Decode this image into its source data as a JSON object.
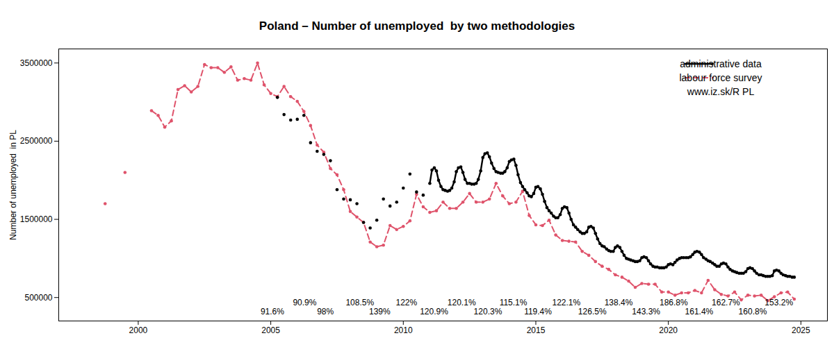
{
  "chart_data": {
    "type": "line",
    "title": "Poland – Number of unemployed  by two methodologies",
    "y_label": "Number of unemployed  in PL",
    "xlim": [
      1997,
      2026
    ],
    "xticks": [
      2000,
      2005,
      2010,
      2015,
      2020,
      2025
    ],
    "ylim": [
      200000,
      3680000
    ],
    "yticks": [
      500000,
      1500000,
      2500000,
      3500000
    ],
    "grid": false,
    "legend": "top-right",
    "caption": "www.iz.sk/R PL",
    "series": [
      {
        "name": "administrative data",
        "color": "#000000",
        "line_style": "solid",
        "marker": "circle",
        "x": [
          2005.25,
          2005.37,
          2005.5,
          2005.62,
          2005.75,
          2005.87,
          2006,
          2006.12,
          2006.25,
          2006.37,
          2006.5,
          2006.62,
          2006.75,
          2006.87,
          2007,
          2007.12,
          2007.25,
          2007.37,
          2007.5,
          2007.62,
          2007.75,
          2007.87,
          2008,
          2008.12,
          2008.25,
          2008.37,
          2008.5,
          2008.62,
          2008.75,
          2008.87,
          2009,
          2009.12,
          2009.25,
          2009.37,
          2009.5,
          2009.62,
          2009.75,
          2009.87,
          2010,
          2010.12,
          2010.25,
          2010.37,
          2010.5,
          2010.62,
          2010.75,
          2010.87,
          2011,
          2011.08,
          2011.17,
          2011.25,
          2011.33,
          2011.42,
          2011.5,
          2011.58,
          2011.67,
          2011.75,
          2011.83,
          2011.92,
          2012,
          2012.08,
          2012.17,
          2012.25,
          2012.33,
          2012.42,
          2012.5,
          2012.58,
          2012.67,
          2012.75,
          2012.83,
          2012.92,
          2013,
          2013.08,
          2013.17,
          2013.25,
          2013.33,
          2013.42,
          2013.5,
          2013.58,
          2013.67,
          2013.75,
          2013.83,
          2013.92,
          2014,
          2014.08,
          2014.17,
          2014.25,
          2014.33,
          2014.42,
          2014.5,
          2014.58,
          2014.67,
          2014.75,
          2014.83,
          2014.92,
          2015,
          2015.08,
          2015.17,
          2015.25,
          2015.33,
          2015.42,
          2015.5,
          2015.58,
          2015.67,
          2015.75,
          2015.83,
          2015.92,
          2016,
          2016.08,
          2016.17,
          2016.25,
          2016.33,
          2016.42,
          2016.5,
          2016.58,
          2016.67,
          2016.75,
          2016.83,
          2016.92,
          2017,
          2017.08,
          2017.17,
          2017.25,
          2017.33,
          2017.42,
          2017.5,
          2017.58,
          2017.67,
          2017.75,
          2017.83,
          2017.92,
          2018,
          2018.08,
          2018.17,
          2018.25,
          2018.33,
          2018.42,
          2018.5,
          2018.58,
          2018.67,
          2018.75,
          2018.83,
          2018.92,
          2019,
          2019.08,
          2019.17,
          2019.25,
          2019.33,
          2019.42,
          2019.5,
          2019.58,
          2019.67,
          2019.75,
          2019.83,
          2019.92,
          2020,
          2020.08,
          2020.17,
          2020.25,
          2020.33,
          2020.42,
          2020.5,
          2020.58,
          2020.67,
          2020.75,
          2020.83,
          2020.92,
          2021,
          2021.08,
          2021.17,
          2021.25,
          2021.33,
          2021.42,
          2021.5,
          2021.58,
          2021.67,
          2021.75,
          2021.83,
          2021.92,
          2022,
          2022.08,
          2022.17,
          2022.25,
          2022.33,
          2022.42,
          2022.5,
          2022.58,
          2022.67,
          2022.75,
          2022.83,
          2022.92,
          2023,
          2023.08,
          2023.17,
          2023.25,
          2023.33,
          2023.42,
          2023.5,
          2023.58,
          2023.67,
          2023.75,
          2023.83,
          2023.92,
          2024,
          2024.08,
          2024.17,
          2024.25,
          2024.33,
          2024.42,
          2024.5,
          2024.58,
          2024.67,
          2024.75
        ],
        "values": [
          3060000,
          null,
          2840000,
          null,
          2770000,
          null,
          2780000,
          null,
          2830000,
          null,
          2480000,
          null,
          2370000,
          null,
          2330000,
          null,
          2250000,
          null,
          1880000,
          null,
          1760000,
          null,
          1750000,
          null,
          1700000,
          null,
          1460000,
          null,
          1390000,
          null,
          1490000,
          null,
          1760000,
          null,
          1670000,
          null,
          1720000,
          null,
          1900000,
          null,
          2080000,
          null,
          1850000,
          null,
          1810000,
          null,
          1960000,
          2130000,
          2160000,
          2120000,
          2000000,
          1920000,
          1880000,
          1870000,
          1860000,
          1870000,
          1900000,
          1980000,
          2110000,
          2160000,
          2170000,
          2100000,
          2010000,
          1960000,
          1960000,
          1950000,
          1950000,
          1960000,
          2010000,
          2120000,
          2290000,
          2340000,
          2350000,
          2300000,
          2220000,
          2150000,
          2110000,
          2100000,
          2090000,
          2090000,
          2110000,
          2160000,
          2240000,
          2260000,
          2270000,
          2190000,
          2070000,
          1970000,
          1920000,
          1880000,
          1840000,
          1800000,
          1790000,
          1830000,
          1910000,
          1920000,
          1890000,
          1820000,
          1730000,
          1650000,
          1610000,
          1580000,
          1540000,
          1520000,
          1520000,
          1560000,
          1640000,
          1660000,
          1650000,
          1580000,
          1500000,
          1430000,
          1400000,
          1370000,
          1340000,
          1320000,
          1320000,
          1340000,
          1400000,
          1410000,
          1390000,
          1320000,
          1250000,
          1190000,
          1160000,
          1150000,
          1120000,
          1100000,
          1090000,
          1090000,
          1140000,
          1160000,
          1140000,
          1090000,
          1040000,
          1000000,
          990000,
          980000,
          970000,
          960000,
          960000,
          970000,
          1010000,
          1020000,
          1010000,
          970000,
          930000,
          900000,
          890000,
          890000,
          880000,
          880000,
          880000,
          890000,
          920000,
          930000,
          920000,
          950000,
          980000,
          1000000,
          1010000,
          1010000,
          1010000,
          1010000,
          1020000,
          1050000,
          1080000,
          1090000,
          1080000,
          1050000,
          1010000,
          990000,
          970000,
          960000,
          940000,
          920000,
          900000,
          900000,
          930000,
          940000,
          930000,
          890000,
          860000,
          840000,
          830000,
          820000,
          810000,
          810000,
          810000,
          830000,
          870000,
          880000,
          870000,
          840000,
          810000,
          790000,
          790000,
          780000,
          770000,
          770000,
          770000,
          780000,
          840000,
          850000,
          840000,
          810000,
          790000,
          780000,
          770000,
          770000,
          760000,
          760000
        ]
      },
      {
        "name": "labour force survey",
        "color": "#DF536B",
        "line_style": "dashed",
        "marker": "circle",
        "x": [
          1998.75,
          1999.1,
          1999.5,
          2000.1,
          2000.5,
          2000.75,
          2001,
          2001.25,
          2001.5,
          2001.75,
          2002,
          2002.25,
          2002.5,
          2002.75,
          2003,
          2003.25,
          2003.5,
          2003.75,
          2004,
          2004.25,
          2004.5,
          2004.75,
          2005,
          2005.25,
          2005.5,
          2005.75,
          2006,
          2006.25,
          2006.5,
          2006.75,
          2007,
          2007.25,
          2007.5,
          2007.75,
          2008,
          2008.25,
          2008.5,
          2008.75,
          2009,
          2009.25,
          2009.5,
          2009.75,
          2010,
          2010.25,
          2010.5,
          2010.75,
          2011,
          2011.25,
          2011.5,
          2011.75,
          2012,
          2012.25,
          2012.5,
          2012.75,
          2013,
          2013.25,
          2013.5,
          2013.75,
          2014,
          2014.25,
          2014.5,
          2014.75,
          2015,
          2015.25,
          2015.5,
          2015.75,
          2016,
          2016.25,
          2016.5,
          2016.75,
          2017,
          2017.25,
          2017.5,
          2017.75,
          2018,
          2018.25,
          2018.5,
          2018.75,
          2019,
          2019.25,
          2019.5,
          2019.75,
          2020,
          2020.25,
          2020.5,
          2020.75,
          2021,
          2021.25,
          2021.5,
          2021.75,
          2022,
          2022.25,
          2022.5,
          2022.75,
          2023,
          2023.25,
          2023.5,
          2023.75,
          2024,
          2024.25,
          2024.5,
          2024.75
        ],
        "values": [
          1700000,
          null,
          2100000,
          null,
          2890000,
          2830000,
          2680000,
          2760000,
          3160000,
          3210000,
          3130000,
          3200000,
          3480000,
          3440000,
          3440000,
          3380000,
          3450000,
          3280000,
          3300000,
          3280000,
          3500000,
          3220000,
          3110000,
          3070000,
          3200000,
          3070000,
          3010000,
          2880000,
          2700000,
          2450000,
          2360000,
          2150000,
          2070000,
          1880000,
          1600000,
          1530000,
          1460000,
          1210000,
          1150000,
          1170000,
          1420000,
          1370000,
          1410000,
          1480000,
          1820000,
          1660000,
          1590000,
          1610000,
          1720000,
          1640000,
          1640000,
          1720000,
          1830000,
          1720000,
          1720000,
          1760000,
          1960000,
          1800000,
          1700000,
          1720000,
          1860000,
          1550000,
          1430000,
          1420000,
          1490000,
          1300000,
          1230000,
          1220000,
          1210000,
          1090000,
          1040000,
          960000,
          900000,
          860000,
          790000,
          760000,
          710000,
          630000,
          680000,
          670000,
          670000,
          570000,
          570000,
          530000,
          560000,
          560000,
          590000,
          560000,
          720000,
          600000,
          540000,
          520000,
          570000,
          470000,
          530000,
          520000,
          530000,
          460000,
          510000,
          560000,
          570000,
          480000
        ]
      }
    ],
    "annotations": [
      {
        "text": "91.6%",
        "x": 2005.06,
        "y": 318000
      },
      {
        "text": "90.9%",
        "x": 2006.28,
        "y": 430000
      },
      {
        "text": "98%",
        "x": 2007.06,
        "y": 318000
      },
      {
        "text": "108.5%",
        "x": 2008.36,
        "y": 430000
      },
      {
        "text": "139%",
        "x": 2009.11,
        "y": 318000
      },
      {
        "text": "122%",
        "x": 2010.12,
        "y": 430000
      },
      {
        "text": "120.9%",
        "x": 2011.16,
        "y": 318000
      },
      {
        "text": "120.1%",
        "x": 2012.2,
        "y": 430000
      },
      {
        "text": "120.3%",
        "x": 2013.19,
        "y": 318000
      },
      {
        "text": "115.1%",
        "x": 2014.15,
        "y": 430000
      },
      {
        "text": "119.4%",
        "x": 2015.08,
        "y": 318000
      },
      {
        "text": "122.1%",
        "x": 2016.15,
        "y": 430000
      },
      {
        "text": "126.5%",
        "x": 2017.13,
        "y": 318000
      },
      {
        "text": "138.4%",
        "x": 2018.12,
        "y": 430000
      },
      {
        "text": "143.3%",
        "x": 2019.16,
        "y": 318000
      },
      {
        "text": "186.8%",
        "x": 2020.2,
        "y": 430000
      },
      {
        "text": "161.4%",
        "x": 2021.16,
        "y": 318000
      },
      {
        "text": "162.7%",
        "x": 2022.17,
        "y": 430000
      },
      {
        "text": "160.8%",
        "x": 2023.18,
        "y": 318000
      },
      {
        "text": "153.2%",
        "x": 2024.17,
        "y": 430000
      }
    ]
  }
}
